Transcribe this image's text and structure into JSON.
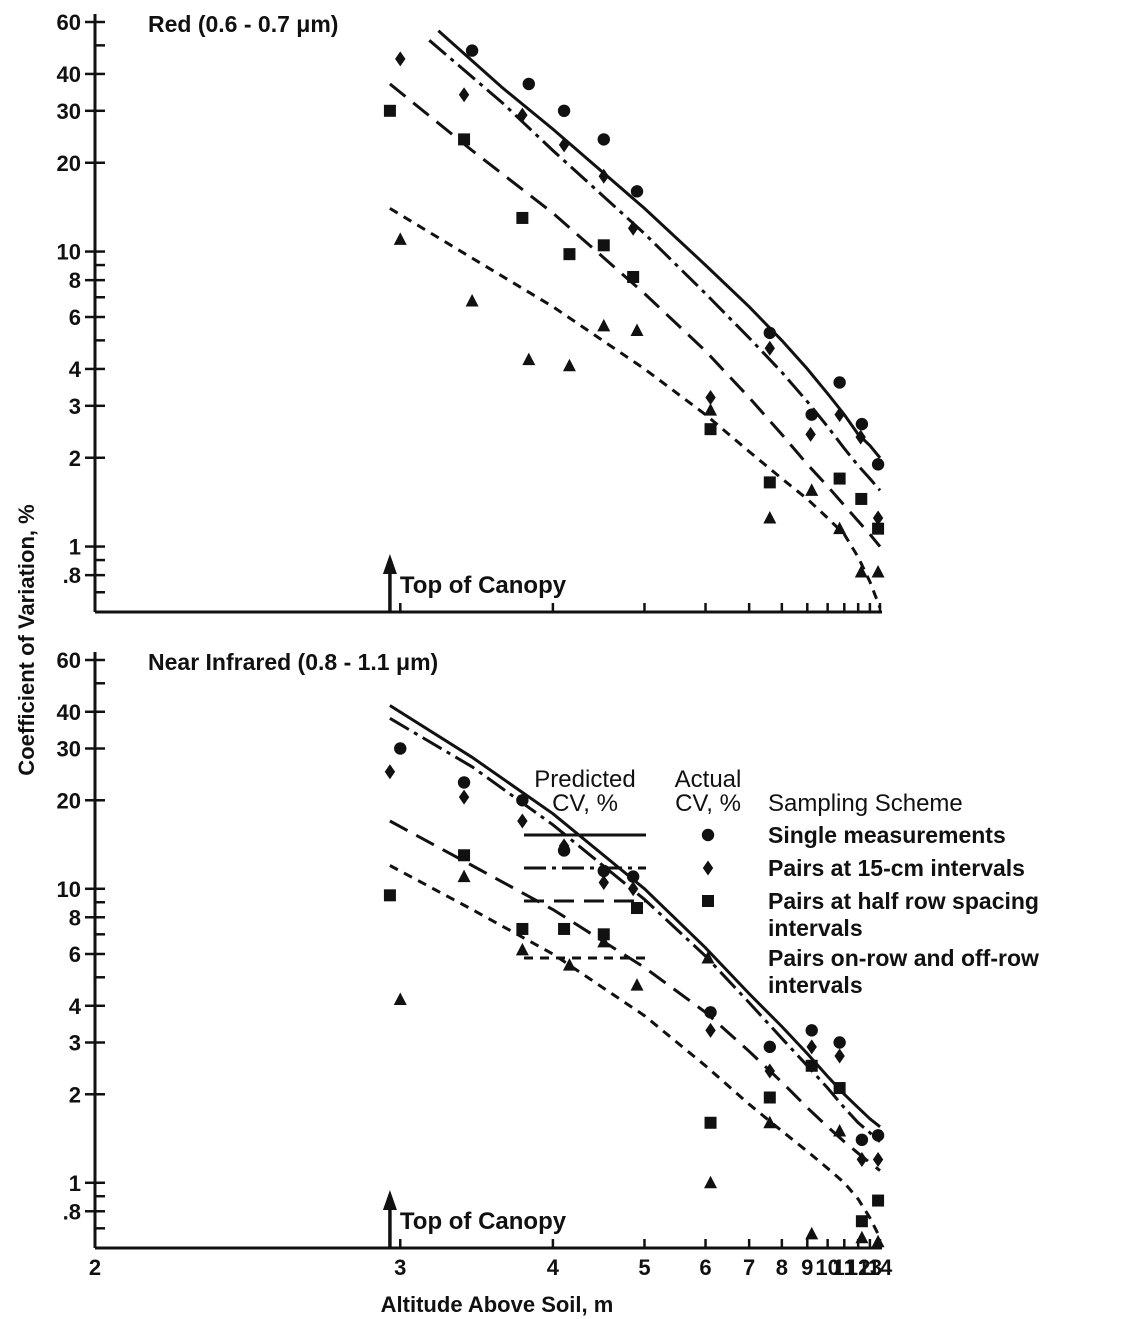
{
  "figure": {
    "ylabel": "Coefficient of Variation, %",
    "xlabel": "Altitude Above Soil, m",
    "canopy_label": "Top of Canopy"
  },
  "legend": {
    "head_predicted_line1": "Predicted",
    "head_predicted_line2": "CV, %",
    "head_actual_line1": "Actual",
    "head_actual_line2": "CV, %",
    "head_scheme": "Sampling Scheme",
    "items": [
      {
        "label_lines": [
          "Single measurements"
        ],
        "line_style": "solid",
        "marker": "circle"
      },
      {
        "label_lines": [
          "Pairs at 15-cm intervals"
        ],
        "line_style": "dashdot",
        "marker": "diamond"
      },
      {
        "label_lines": [
          "Pairs at half row spacing",
          "intervals"
        ],
        "line_style": "longdash",
        "marker": "square"
      },
      {
        "label_lines": [
          "Pairs on-row and off-row",
          "intervals"
        ],
        "line_style": "shortdash",
        "marker": "triangle"
      }
    ]
  },
  "chart_data": [
    {
      "type": "scatter",
      "title": "Red (0.6 - 0.7 μm)",
      "xlabel": "Altitude Above Soil, m",
      "ylabel": "Coefficient of Variation, %",
      "x_scale": "reciprocal",
      "y_scale": "log",
      "xlim": [
        2,
        14
      ],
      "ylim": [
        0.6,
        60
      ],
      "x_ticks": [
        2,
        3,
        4,
        5,
        6,
        7,
        8,
        9,
        10,
        11,
        12,
        13,
        14
      ],
      "x_tick_labels": [],
      "y_tick_labels": [
        "60",
        "40",
        "30",
        "20",
        "10",
        "8",
        "6",
        "4",
        "3",
        "2",
        "1",
        ".8"
      ],
      "y_tick_values": [
        60,
        40,
        30,
        20,
        10,
        8,
        6,
        4,
        3,
        2,
        1,
        0.8
      ],
      "canopy_altitude": 2.95,
      "series": [
        {
          "name": "Single measurements",
          "marker": "circle",
          "line_style": "solid",
          "points": [
            [
              3.4,
              48
            ],
            [
              3.8,
              37
            ],
            [
              4.1,
              30
            ],
            [
              4.5,
              24
            ],
            [
              4.9,
              16
            ],
            [
              7.6,
              5.3
            ],
            [
              9.2,
              2.8
            ],
            [
              10.7,
              3.6
            ],
            [
              12.3,
              2.6
            ],
            [
              13.8,
              1.9
            ]
          ],
          "curve": [
            [
              3.2,
              56
            ],
            [
              3.6,
              36
            ],
            [
              4.0,
              26
            ],
            [
              5.0,
              14
            ],
            [
              6.0,
              9
            ],
            [
              7.0,
              6.5
            ],
            [
              8.0,
              5.0
            ],
            [
              9.0,
              4.0
            ],
            [
              10.0,
              3.3
            ],
            [
              11.0,
              2.8
            ],
            [
              12.0,
              2.4
            ],
            [
              13.0,
              2.2
            ],
            [
              14.0,
              2.0
            ]
          ]
        },
        {
          "name": "Pairs at 15-cm intervals",
          "marker": "diamond",
          "line_style": "dashdot",
          "points": [
            [
              3.0,
              45
            ],
            [
              3.35,
              34
            ],
            [
              3.75,
              29
            ],
            [
              4.1,
              23
            ],
            [
              4.5,
              18
            ],
            [
              4.85,
              12
            ],
            [
              6.1,
              3.2
            ],
            [
              7.6,
              4.7
            ],
            [
              9.15,
              2.4
            ],
            [
              10.7,
              2.8
            ],
            [
              12.2,
              2.35
            ],
            [
              13.8,
              1.25
            ]
          ],
          "curve": [
            [
              3.15,
              52
            ],
            [
              3.6,
              32
            ],
            [
              4.0,
              22
            ],
            [
              5.0,
              11.5
            ],
            [
              6.0,
              7.2
            ],
            [
              7.0,
              5.1
            ],
            [
              8.0,
              3.9
            ],
            [
              9.0,
              3.1
            ],
            [
              10.0,
              2.55
            ],
            [
              11.0,
              2.15
            ],
            [
              12.0,
              1.88
            ],
            [
              13.0,
              1.7
            ],
            [
              14.0,
              1.55
            ]
          ]
        },
        {
          "name": "Pairs at half row spacing intervals",
          "marker": "square",
          "line_style": "longdash",
          "points": [
            [
              2.95,
              30
            ],
            [
              3.35,
              24
            ],
            [
              3.75,
              13
            ],
            [
              4.15,
              9.8
            ],
            [
              4.5,
              10.5
            ],
            [
              4.85,
              8.2
            ],
            [
              6.1,
              2.5
            ],
            [
              7.6,
              1.65
            ],
            [
              10.7,
              1.7
            ],
            [
              12.25,
              1.45
            ],
            [
              13.8,
              1.15
            ]
          ],
          "curve": [
            [
              2.95,
              37
            ],
            [
              3.4,
              22
            ],
            [
              4.0,
              13.5
            ],
            [
              5.0,
              7.2
            ],
            [
              6.0,
              4.6
            ],
            [
              7.0,
              3.2
            ],
            [
              8.0,
              2.4
            ],
            [
              9.0,
              1.9
            ],
            [
              10.0,
              1.6
            ],
            [
              11.0,
              1.38
            ],
            [
              12.0,
              1.22
            ],
            [
              13.0,
              1.1
            ],
            [
              14.0,
              1.0
            ]
          ]
        },
        {
          "name": "Pairs on-row and off-row intervals",
          "marker": "triangle",
          "line_style": "shortdash",
          "points": [
            [
              3.0,
              11
            ],
            [
              3.4,
              6.8
            ],
            [
              3.8,
              4.3
            ],
            [
              4.15,
              4.1
            ],
            [
              4.5,
              5.6
            ],
            [
              4.9,
              5.4
            ],
            [
              6.1,
              2.9
            ],
            [
              7.6,
              1.25
            ],
            [
              9.2,
              1.55
            ],
            [
              10.7,
              1.15
            ],
            [
              12.25,
              0.82
            ],
            [
              13.8,
              0.82
            ]
          ],
          "curve": [
            [
              2.95,
              14
            ],
            [
              3.4,
              9.5
            ],
            [
              4.0,
              6.5
            ],
            [
              5.0,
              4.0
            ],
            [
              6.0,
              2.8
            ],
            [
              7.0,
              2.1
            ],
            [
              8.0,
              1.7
            ],
            [
              9.0,
              1.45
            ],
            [
              10.0,
              1.25
            ],
            [
              11.0,
              1.1
            ],
            [
              12.0,
              0.92
            ],
            [
              13.0,
              0.76
            ],
            [
              14.0,
              0.62
            ]
          ]
        }
      ]
    },
    {
      "type": "scatter",
      "title": "Near Infrared (0.8 - 1.1 μm)",
      "xlabel": "Altitude Above Soil, m",
      "ylabel": "Coefficient of Variation, %",
      "x_scale": "reciprocal",
      "y_scale": "log",
      "xlim": [
        2,
        14
      ],
      "ylim": [
        0.6,
        60
      ],
      "x_ticks": [
        2,
        3,
        4,
        5,
        6,
        7,
        8,
        9,
        10,
        11,
        12,
        13,
        14
      ],
      "x_tick_labels": [
        "2",
        "3",
        "4",
        "5",
        "6",
        "7",
        "8",
        "9",
        "10",
        "11",
        "12",
        "13",
        "14"
      ],
      "y_tick_labels": [
        "60",
        "40",
        "30",
        "20",
        "10",
        "8",
        "6",
        "4",
        "3",
        "2",
        "1",
        ".8"
      ],
      "y_tick_values": [
        60,
        40,
        30,
        20,
        10,
        8,
        6,
        4,
        3,
        2,
        1,
        0.8
      ],
      "canopy_altitude": 2.95,
      "series": [
        {
          "name": "Single measurements",
          "marker": "circle",
          "line_style": "solid",
          "points": [
            [
              3.0,
              30
            ],
            [
              3.35,
              23
            ],
            [
              3.75,
              20
            ],
            [
              4.1,
              13.5
            ],
            [
              4.5,
              11.5
            ],
            [
              4.85,
              11
            ],
            [
              6.1,
              3.8
            ],
            [
              7.6,
              2.9
            ],
            [
              9.2,
              3.3
            ],
            [
              10.7,
              3.0
            ],
            [
              12.3,
              1.4
            ],
            [
              13.8,
              1.45
            ]
          ],
          "curve": [
            [
              2.95,
              42
            ],
            [
              3.4,
              28
            ],
            [
              4.0,
              18
            ],
            [
              5.0,
              10
            ],
            [
              6.0,
              6.3
            ],
            [
              7.0,
              4.4
            ],
            [
              8.0,
              3.4
            ],
            [
              9.0,
              2.75
            ],
            [
              10.0,
              2.3
            ],
            [
              11.0,
              2.0
            ],
            [
              12.0,
              1.8
            ],
            [
              13.0,
              1.65
            ],
            [
              14.0,
              1.55
            ]
          ]
        },
        {
          "name": "Pairs at 15-cm intervals",
          "marker": "diamond",
          "line_style": "dashdot",
          "points": [
            [
              2.95,
              25
            ],
            [
              3.35,
              20.5
            ],
            [
              3.75,
              17
            ],
            [
              4.1,
              14
            ],
            [
              4.5,
              10.5
            ],
            [
              4.85,
              10
            ],
            [
              6.1,
              3.3
            ],
            [
              7.6,
              2.4
            ],
            [
              9.2,
              2.9
            ],
            [
              10.7,
              2.7
            ],
            [
              12.3,
              1.2
            ],
            [
              13.8,
              1.2
            ]
          ],
          "curve": [
            [
              2.95,
              38
            ],
            [
              3.4,
              26
            ],
            [
              4.0,
              16.5
            ],
            [
              5.0,
              9.2
            ],
            [
              6.0,
              5.9
            ],
            [
              7.0,
              4.1
            ],
            [
              8.0,
              3.1
            ],
            [
              9.0,
              2.5
            ],
            [
              10.0,
              2.1
            ],
            [
              11.0,
              1.8
            ],
            [
              12.0,
              1.6
            ],
            [
              13.0,
              1.48
            ],
            [
              14.0,
              1.38
            ]
          ]
        },
        {
          "name": "Pairs at half row spacing intervals",
          "marker": "square",
          "line_style": "longdash",
          "points": [
            [
              2.95,
              9.5
            ],
            [
              3.35,
              13
            ],
            [
              3.75,
              7.3
            ],
            [
              4.1,
              7.3
            ],
            [
              4.5,
              7.0
            ],
            [
              4.9,
              8.6
            ],
            [
              6.1,
              1.6
            ],
            [
              7.6,
              1.95
            ],
            [
              9.2,
              2.5
            ],
            [
              10.7,
              2.1
            ],
            [
              12.3,
              0.74
            ],
            [
              13.8,
              0.87
            ]
          ],
          "curve": [
            [
              2.95,
              17
            ],
            [
              3.4,
              12
            ],
            [
              4.0,
              8.5
            ],
            [
              5.0,
              5.4
            ],
            [
              6.0,
              3.8
            ],
            [
              7.0,
              2.8
            ],
            [
              8.0,
              2.2
            ],
            [
              9.0,
              1.8
            ],
            [
              10.0,
              1.55
            ],
            [
              11.0,
              1.38
            ],
            [
              12.0,
              1.26
            ],
            [
              13.0,
              1.17
            ],
            [
              14.0,
              1.1
            ]
          ]
        },
        {
          "name": "Pairs on-row and off-row intervals",
          "marker": "triangle",
          "line_style": "shortdash",
          "points": [
            [
              3.0,
              4.2
            ],
            [
              3.35,
              11
            ],
            [
              3.75,
              6.2
            ],
            [
              4.15,
              5.5
            ],
            [
              4.5,
              6.6
            ],
            [
              4.9,
              4.7
            ],
            [
              6.1,
              1.0
            ],
            [
              7.6,
              1.6
            ],
            [
              9.2,
              0.67
            ],
            [
              10.7,
              1.5
            ],
            [
              12.3,
              0.65
            ],
            [
              13.8,
              0.63
            ]
          ],
          "curve": [
            [
              2.95,
              12
            ],
            [
              3.4,
              8.5
            ],
            [
              4.0,
              6.0
            ],
            [
              5.0,
              3.7
            ],
            [
              6.0,
              2.5
            ],
            [
              7.0,
              1.85
            ],
            [
              8.0,
              1.5
            ],
            [
              9.0,
              1.28
            ],
            [
              10.0,
              1.12
            ],
            [
              11.0,
              1.0
            ],
            [
              12.0,
              0.88
            ],
            [
              13.0,
              0.76
            ],
            [
              14.0,
              0.65
            ]
          ]
        }
      ]
    }
  ]
}
